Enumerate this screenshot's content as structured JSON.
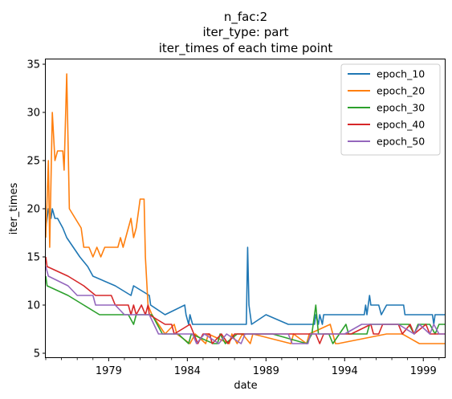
{
  "chart_data": {
    "type": "line",
    "title_lines": [
      "n_fac:2",
      "iter_type: part",
      "iter_times of each time point"
    ],
    "xlabel": "date",
    "ylabel": "iter_times",
    "x_range": [
      "1975-01",
      "2000-06"
    ],
    "x_ticks": [
      {
        "date": "1979-01",
        "label": "1979"
      },
      {
        "date": "1984-01",
        "label": "1984"
      },
      {
        "date": "1989-01",
        "label": "1989"
      },
      {
        "date": "1994-01",
        "label": "1994"
      },
      {
        "date": "1999-01",
        "label": "1999"
      }
    ],
    "ylim": [
      4.5,
      35.5
    ],
    "y_ticks": [
      5,
      10,
      15,
      20,
      25,
      30,
      35
    ],
    "legend_position": "upper right",
    "series": [
      {
        "name": "epoch_10",
        "color": "#1f77b4",
        "points": [
          [
            "1975-01",
            18
          ],
          [
            "1975-03",
            20
          ],
          [
            "1975-05",
            19
          ],
          [
            "1975-06",
            20
          ],
          [
            "1975-08",
            19
          ],
          [
            "1975-10",
            19
          ],
          [
            "1976-02",
            18
          ],
          [
            "1976-05",
            17
          ],
          [
            "1976-10",
            16
          ],
          [
            "1977-03",
            15
          ],
          [
            "1977-09",
            14
          ],
          [
            "1978-01",
            13
          ],
          [
            "1979-06",
            12
          ],
          [
            "1980-06",
            11
          ],
          [
            "1980-08",
            12
          ],
          [
            "1981-08",
            11
          ],
          [
            "1981-09",
            10
          ],
          [
            "1982-08",
            9
          ],
          [
            "1983-11",
            10
          ],
          [
            "1983-12",
            9
          ],
          [
            "1984-02",
            8
          ],
          [
            "1984-03",
            9
          ],
          [
            "1984-05",
            8
          ],
          [
            "1987-10",
            8
          ],
          [
            "1987-11",
            16
          ],
          [
            "1987-12",
            10
          ],
          [
            "1988-02",
            8
          ],
          [
            "1989-01",
            9
          ],
          [
            "1990-06",
            8
          ],
          [
            "1992-02",
            8
          ],
          [
            "1992-03",
            9
          ],
          [
            "1992-05",
            8
          ],
          [
            "1992-06",
            9
          ],
          [
            "1992-08",
            8
          ],
          [
            "1992-09",
            9
          ],
          [
            "1993-03",
            9
          ],
          [
            "1995-04",
            9
          ],
          [
            "1995-05",
            10
          ],
          [
            "1995-06",
            9
          ],
          [
            "1995-08",
            11
          ],
          [
            "1995-09",
            10
          ],
          [
            "1996-03",
            10
          ],
          [
            "1996-05",
            9
          ],
          [
            "1996-09",
            10
          ],
          [
            "1997-10",
            10
          ],
          [
            "1997-11",
            9
          ],
          [
            "1999-08",
            9
          ],
          [
            "1999-09",
            8
          ],
          [
            "1999-10",
            9
          ],
          [
            "2000-06",
            9
          ]
        ]
      },
      {
        "name": "epoch_20",
        "color": "#ff7f0e",
        "points": [
          [
            "1975-01",
            17
          ],
          [
            "1975-03",
            25
          ],
          [
            "1975-04",
            16
          ],
          [
            "1975-06",
            30
          ],
          [
            "1975-08",
            25
          ],
          [
            "1975-10",
            26
          ],
          [
            "1976-02",
            26
          ],
          [
            "1976-03",
            24
          ],
          [
            "1976-05",
            34
          ],
          [
            "1976-07",
            20
          ],
          [
            "1977-04",
            18
          ],
          [
            "1977-06",
            16
          ],
          [
            "1977-10",
            16
          ],
          [
            "1978-01",
            15
          ],
          [
            "1978-04",
            16
          ],
          [
            "1978-07",
            15
          ],
          [
            "1978-10",
            16
          ],
          [
            "1979-08",
            16
          ],
          [
            "1979-10",
            17
          ],
          [
            "1979-12",
            16
          ],
          [
            "1980-06",
            19
          ],
          [
            "1980-08",
            17
          ],
          [
            "1980-10",
            18
          ],
          [
            "1981-01",
            21
          ],
          [
            "1981-04",
            21
          ],
          [
            "1981-05",
            15
          ],
          [
            "1981-07",
            10
          ],
          [
            "1981-10",
            9
          ],
          [
            "1982-08",
            7
          ],
          [
            "1983-03",
            8
          ],
          [
            "1983-05",
            7
          ],
          [
            "1984-03",
            6
          ],
          [
            "1984-07",
            7
          ],
          [
            "1985-03",
            6
          ],
          [
            "1985-05",
            7
          ],
          [
            "1986-09",
            6
          ],
          [
            "1986-11",
            7
          ],
          [
            "1987-03",
            6
          ],
          [
            "1987-07",
            7
          ],
          [
            "1988-01",
            6
          ],
          [
            "1988-03",
            7
          ],
          [
            "1990-08",
            6
          ],
          [
            "1990-10",
            7
          ],
          [
            "1991-08",
            6
          ],
          [
            "1991-10",
            7
          ],
          [
            "1993-02",
            8
          ],
          [
            "1993-06",
            6
          ],
          [
            "1993-08",
            6
          ],
          [
            "1996-09",
            7
          ],
          [
            "1997-09",
            7
          ],
          [
            "1998-10",
            6
          ],
          [
            "2000-06",
            6
          ]
        ]
      },
      {
        "name": "epoch_30",
        "color": "#2ca02c",
        "points": [
          [
            "1975-01",
            13
          ],
          [
            "1975-02",
            12
          ],
          [
            "1976-06",
            11
          ],
          [
            "1977-06",
            10
          ],
          [
            "1978-06",
            9
          ],
          [
            "1980-04",
            9
          ],
          [
            "1980-08",
            8
          ],
          [
            "1980-10",
            9
          ],
          [
            "1981-10",
            9
          ],
          [
            "1982-06",
            7
          ],
          [
            "1983-06",
            7
          ],
          [
            "1984-02",
            6
          ],
          [
            "1984-04",
            7
          ],
          [
            "1985-09",
            6
          ],
          [
            "1985-12",
            6
          ],
          [
            "1986-02",
            7
          ],
          [
            "1986-06",
            6
          ],
          [
            "1987-03",
            7
          ],
          [
            "1989-06",
            7
          ],
          [
            "1991-08",
            6
          ],
          [
            "1991-12",
            7
          ],
          [
            "1992-03",
            10
          ],
          [
            "1992-05",
            7
          ],
          [
            "1993-01",
            7
          ],
          [
            "1993-04",
            6
          ],
          [
            "1993-09",
            7
          ],
          [
            "1994-02",
            8
          ],
          [
            "1994-04",
            7
          ],
          [
            "1995-06",
            7
          ],
          [
            "1995-08",
            8
          ],
          [
            "1998-02",
            8
          ],
          [
            "1998-06",
            7
          ],
          [
            "1998-09",
            8
          ],
          [
            "1999-06",
            8
          ],
          [
            "1999-10",
            7
          ],
          [
            "2000-01",
            8
          ],
          [
            "2000-06",
            8
          ]
        ]
      },
      {
        "name": "epoch_40",
        "color": "#d62728",
        "points": [
          [
            "1975-01",
            15
          ],
          [
            "1975-02",
            14
          ],
          [
            "1976-06",
            13
          ],
          [
            "1977-06",
            12
          ],
          [
            "1978-03",
            11
          ],
          [
            "1979-03",
            11
          ],
          [
            "1979-06",
            10
          ],
          [
            "1980-04",
            10
          ],
          [
            "1980-06",
            9
          ],
          [
            "1980-08",
            10
          ],
          [
            "1980-10",
            9
          ],
          [
            "1981-02",
            10
          ],
          [
            "1981-05",
            9
          ],
          [
            "1981-07",
            10
          ],
          [
            "1981-08",
            9
          ],
          [
            "1982-08",
            8
          ],
          [
            "1983-01",
            8
          ],
          [
            "1983-03",
            7
          ],
          [
            "1984-03",
            8
          ],
          [
            "1984-06",
            7
          ],
          [
            "1984-09",
            6
          ],
          [
            "1985-01",
            7
          ],
          [
            "1985-06",
            7
          ],
          [
            "1985-08",
            6
          ],
          [
            "1986-03",
            7
          ],
          [
            "1986-08",
            6
          ],
          [
            "1987-01",
            7
          ],
          [
            "1988-09",
            7
          ],
          [
            "1989-03",
            7
          ],
          [
            "1990-08",
            7
          ],
          [
            "1992-03",
            7
          ],
          [
            "1992-06",
            6
          ],
          [
            "1992-09",
            7
          ],
          [
            "1994-06",
            7
          ],
          [
            "1995-09",
            8
          ],
          [
            "1995-11",
            7
          ],
          [
            "1996-03",
            7
          ],
          [
            "1996-06",
            8
          ],
          [
            "1997-06",
            8
          ],
          [
            "1997-09",
            7
          ],
          [
            "1998-03",
            8
          ],
          [
            "1998-06",
            7
          ],
          [
            "1999-03",
            8
          ],
          [
            "1999-06",
            7
          ],
          [
            "1999-09",
            7
          ],
          [
            "2000-06",
            7
          ]
        ]
      },
      {
        "name": "epoch_50",
        "color": "#9467bd",
        "points": [
          [
            "1975-01",
            14
          ],
          [
            "1975-03",
            13
          ],
          [
            "1976-06",
            12
          ],
          [
            "1977-01",
            11
          ],
          [
            "1978-01",
            11
          ],
          [
            "1978-03",
            10
          ],
          [
            "1979-06",
            10
          ],
          [
            "1980-01",
            9
          ],
          [
            "1981-08",
            9
          ],
          [
            "1982-03",
            7
          ],
          [
            "1984-05",
            7
          ],
          [
            "1984-08",
            6
          ],
          [
            "1985-02",
            7
          ],
          [
            "1986-01",
            6
          ],
          [
            "1986-07",
            7
          ],
          [
            "1987-06",
            6
          ],
          [
            "1987-09",
            7
          ],
          [
            "1990-06",
            7
          ],
          [
            "1990-09",
            6
          ],
          [
            "1991-09",
            6
          ],
          [
            "1991-11",
            7
          ],
          [
            "1993-02",
            7
          ],
          [
            "1994-01",
            7
          ],
          [
            "1995-02",
            8
          ],
          [
            "1997-06",
            8
          ],
          [
            "1998-06",
            7
          ],
          [
            "1998-10",
            8
          ],
          [
            "1999-06",
            7
          ],
          [
            "1999-09",
            8
          ],
          [
            "2000-01",
            7
          ],
          [
            "2000-06",
            7
          ]
        ]
      }
    ]
  }
}
